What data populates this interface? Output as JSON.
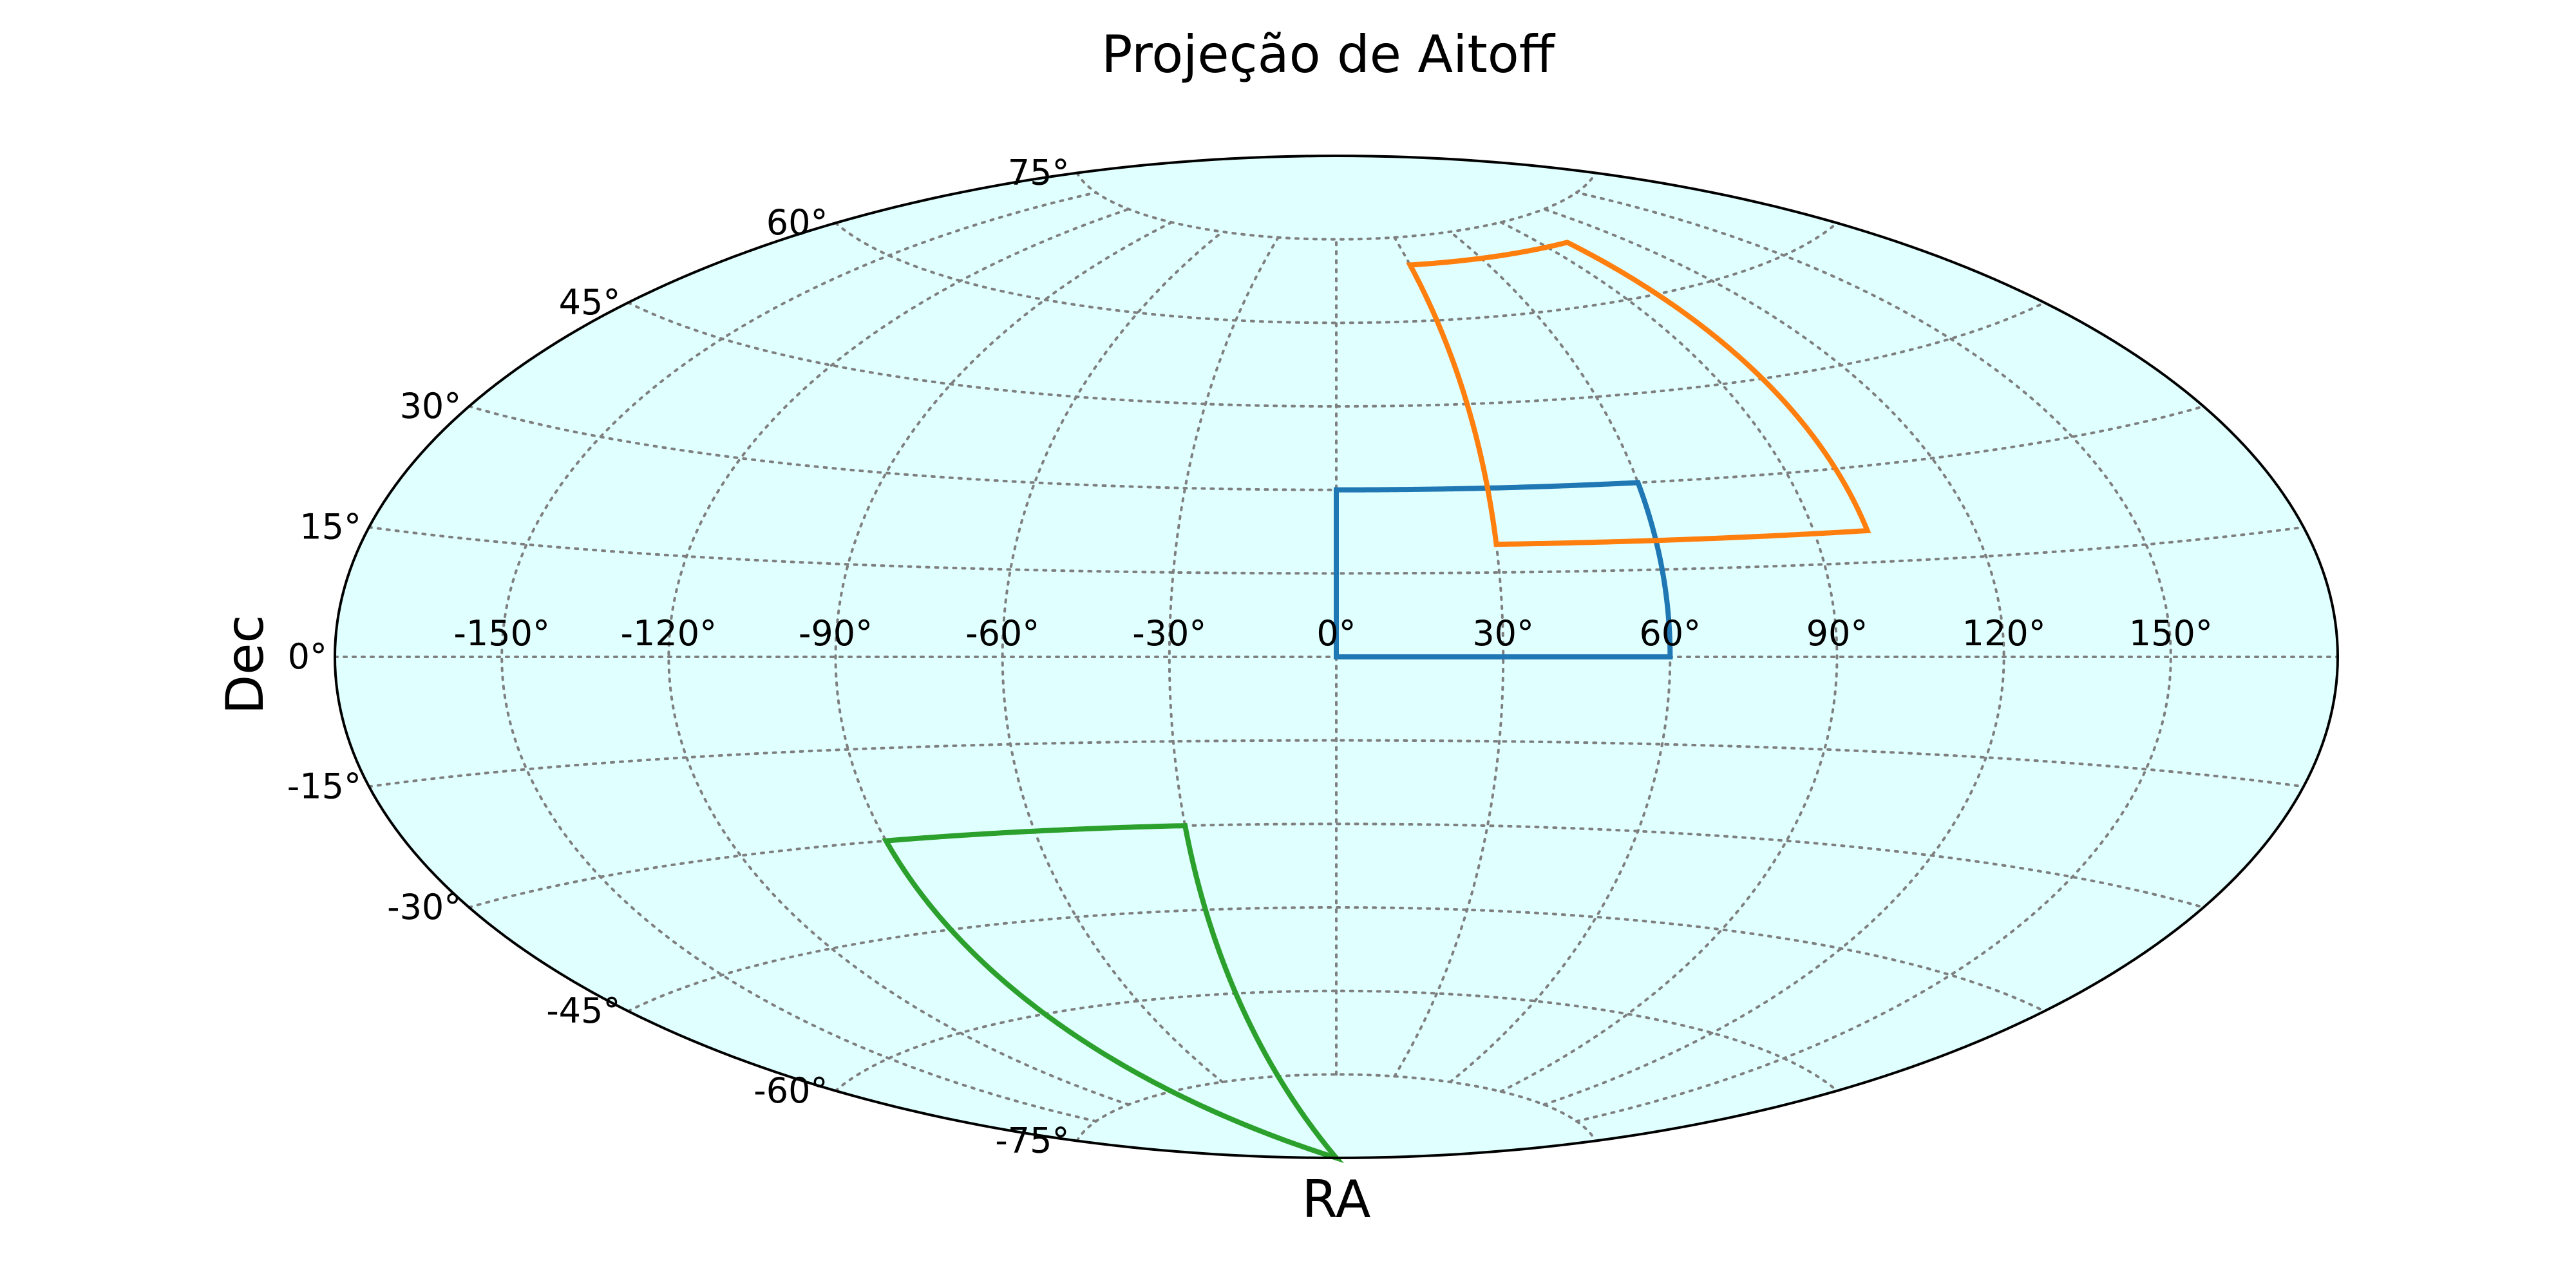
{
  "chart_data": {
    "type": "map",
    "projection": "aitoff",
    "title": "Projeção de Aitoff",
    "xlabel": "RA",
    "ylabel": "Dec",
    "background_color": "#e0ffff",
    "grid": true,
    "ra_gridlines": [
      -150,
      -120,
      -90,
      -60,
      -30,
      0,
      30,
      60,
      90,
      120,
      150
    ],
    "dec_gridlines": [
      -75,
      -60,
      -45,
      -30,
      -15,
      0,
      15,
      30,
      45,
      60,
      75
    ],
    "ra_tick_labels": [
      "-150°",
      "-120°",
      "-90°",
      "-60°",
      "-30°",
      "0°",
      "30°",
      "60°",
      "90°",
      "120°",
      "150°"
    ],
    "dec_tick_labels": [
      "-75°",
      "-60°",
      "-45°",
      "-30°",
      "-15°",
      "0°",
      "15°",
      "30°",
      "45°",
      "60°",
      "75°"
    ],
    "series": [
      {
        "color": "#1f77b4",
        "ra": [
          0,
          60,
          60,
          0,
          0
        ],
        "dec": [
          0,
          0,
          30,
          30,
          0
        ]
      },
      {
        "color": "#ff7f0e",
        "ra": [
          30,
          100,
          100,
          30,
          30
        ],
        "dec": [
          20,
          20,
          70,
          70,
          20
        ]
      },
      {
        "color": "#2ca02c",
        "ra": [
          -90,
          -30,
          -30,
          -90,
          -90
        ],
        "dec": [
          -30,
          -30,
          -90,
          -90,
          -30
        ]
      }
    ]
  }
}
